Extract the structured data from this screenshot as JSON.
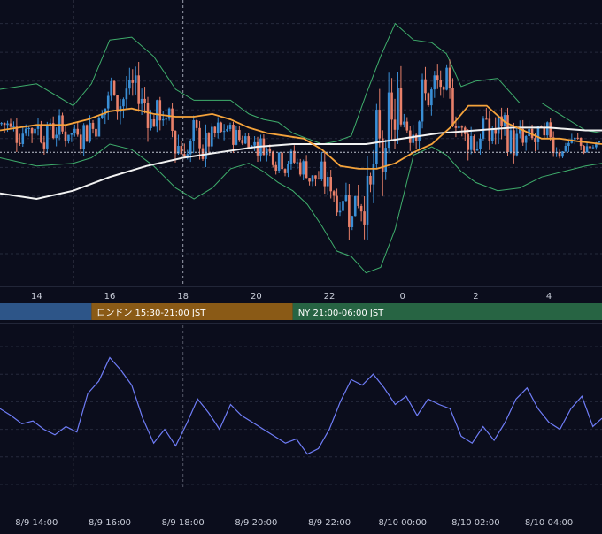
{
  "colors": {
    "background": "#0b0d1c",
    "grid": "#262a3d",
    "separator": "#3a3f55",
    "axis_text": "#c8ccd8",
    "candle_up": "#3a8fd6",
    "candle_down": "#e8806a",
    "bollinger": "#3fae6c",
    "ma_fast": "#f5a33b",
    "ma_slow": "#f2f2f2",
    "price_line": "#bfc3cf",
    "session_line": "#9ba0ae",
    "oscillator": "#6f7df7"
  },
  "upper_axis": {
    "ticks": [
      "14",
      "16",
      "18",
      "20",
      "22",
      "0",
      "2",
      "4"
    ]
  },
  "sessions": [
    {
      "label": "",
      "color": "#2d5588",
      "start_hour": 9.0,
      "end_hour": 15.5
    },
    {
      "label": "ロンドン 15:30-21:00 JST",
      "color": "#8a5a16",
      "start_hour": 15.5,
      "end_hour": 21.0
    },
    {
      "label": "NY 21:00-06:00 JST",
      "color": "#276443",
      "start_hour": 21.0,
      "end_hour": 30.0
    }
  ],
  "lower_axis": {
    "ticks": [
      "8/9 14:00",
      "8/9 16:00",
      "8/9 18:00",
      "8/9 20:00",
      "8/9 22:00",
      "8/10 00:00",
      "8/10 02:00",
      "8/10 04:00"
    ]
  },
  "chart_data": [
    {
      "type": "line",
      "panel": "price",
      "x_unit": "hour JST (8/9 00:00 = 0)",
      "xlim": [
        13.0,
        29.45
      ],
      "ylim": [
        0,
        100
      ],
      "grid": true,
      "series": [
        {
          "role": "upper_bollinger",
          "color": "#3fae6c",
          "x": [
            13.0,
            14.0,
            15.0,
            15.5,
            16.0,
            16.6,
            17.2,
            17.8,
            18.3,
            18.8,
            19.3,
            19.8,
            20.2,
            20.6,
            21.0,
            21.4,
            21.8,
            22.2,
            22.6,
            23.0,
            23.4,
            23.8,
            24.3,
            24.8,
            25.2,
            25.6,
            26.0,
            26.6,
            27.2,
            27.8,
            28.4,
            29.0,
            29.45
          ],
          "y": [
            70,
            72,
            64,
            72,
            88,
            89,
            82,
            70,
            66,
            66,
            66,
            61,
            59,
            58,
            54,
            52,
            50,
            51,
            53,
            68,
            82,
            94,
            88,
            87,
            83,
            71,
            73,
            74,
            65,
            65,
            60,
            55,
            54
          ]
        },
        {
          "role": "lower_bollinger",
          "color": "#3fae6c",
          "x": [
            13.0,
            14.0,
            15.0,
            15.5,
            16.0,
            16.6,
            17.2,
            17.8,
            18.3,
            18.8,
            19.3,
            19.8,
            20.2,
            20.6,
            21.0,
            21.4,
            21.8,
            22.2,
            22.6,
            23.0,
            23.4,
            23.8,
            24.3,
            24.8,
            25.2,
            25.6,
            26.0,
            26.6,
            27.2,
            27.8,
            28.4,
            29.0,
            29.45
          ],
          "y": [
            45,
            42,
            43,
            45,
            50,
            48,
            42,
            34,
            30,
            34,
            41,
            43,
            40,
            36,
            33,
            28,
            20,
            11,
            9,
            3,
            5,
            19,
            46,
            49,
            46,
            40,
            36,
            33,
            34,
            38,
            40,
            42,
            43
          ]
        },
        {
          "role": "moving_average_fast",
          "color": "#f5a33b",
          "x": [
            13.0,
            14.0,
            14.8,
            15.4,
            16.0,
            16.6,
            17.2,
            17.8,
            18.3,
            18.8,
            19.3,
            19.8,
            20.3,
            20.8,
            21.3,
            21.8,
            22.3,
            22.8,
            23.3,
            23.8,
            24.3,
            24.8,
            25.3,
            25.8,
            26.3,
            26.8,
            27.3,
            27.8,
            28.3,
            28.8,
            29.45
          ],
          "y": [
            55,
            57,
            57,
            59,
            62,
            63,
            61,
            60,
            60,
            61,
            59,
            56,
            54,
            53,
            52,
            48,
            42,
            41,
            41,
            43,
            47,
            50,
            56,
            64,
            64,
            58,
            55,
            52,
            52,
            51,
            50
          ]
        },
        {
          "role": "moving_average_slow",
          "color": "#f2f2f2",
          "x": [
            13.0,
            14.0,
            15.0,
            16.0,
            17.0,
            18.0,
            19.0,
            20.0,
            21.0,
            22.0,
            23.0,
            24.0,
            25.0,
            26.0,
            27.0,
            28.0,
            29.0,
            29.45
          ],
          "y": [
            32,
            30,
            33,
            38,
            42,
            45,
            47,
            49,
            50,
            50,
            50,
            52,
            54,
            55,
            56,
            56,
            55,
            55
          ]
        },
        {
          "role": "current_price",
          "color": "#bfc3cf",
          "dashed": true,
          "x": [
            13.0,
            29.45
          ],
          "y": [
            47,
            47
          ]
        }
      ]
    },
    {
      "type": "line",
      "panel": "oscillator",
      "x_unit": "hour JST (8/9 00:00 = 0)",
      "xlim": [
        13.0,
        29.45
      ],
      "ylim": [
        0,
        100
      ],
      "grid": true,
      "series": [
        {
          "role": "oscillator",
          "color": "#6f7df7",
          "x": [
            13.0,
            13.3,
            13.6,
            13.9,
            14.2,
            14.5,
            14.8,
            15.1,
            15.4,
            15.7,
            16.0,
            16.3,
            16.6,
            16.9,
            17.2,
            17.5,
            17.8,
            18.1,
            18.4,
            18.7,
            19.0,
            19.3,
            19.6,
            19.9,
            20.2,
            20.5,
            20.8,
            21.1,
            21.4,
            21.7,
            22.0,
            22.3,
            22.6,
            22.9,
            23.2,
            23.5,
            23.8,
            24.1,
            24.4,
            24.7,
            25.0,
            25.3,
            25.6,
            25.9,
            26.2,
            26.5,
            26.8,
            27.1,
            27.4,
            27.7,
            28.0,
            28.3,
            28.6,
            28.9,
            29.2,
            29.45
          ],
          "y": [
            55,
            50,
            44,
            46,
            40,
            36,
            42,
            38,
            66,
            75,
            92,
            83,
            72,
            48,
            30,
            40,
            28,
            44,
            62,
            52,
            40,
            58,
            50,
            45,
            40,
            35,
            30,
            33,
            22,
            26,
            40,
            60,
            76,
            72,
            80,
            70,
            58,
            64,
            50,
            62,
            58,
            55,
            35,
            30,
            42,
            32,
            45,
            62,
            70,
            55,
            45,
            40,
            55,
            64,
            42,
            48
          ]
        }
      ]
    }
  ]
}
